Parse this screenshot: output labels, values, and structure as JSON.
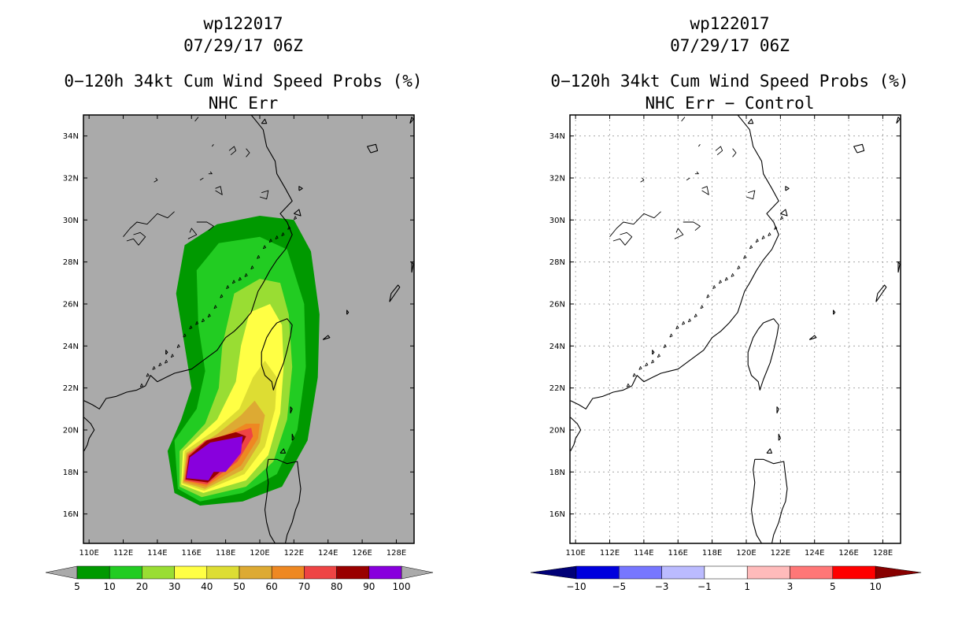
{
  "panels": [
    {
      "storm_id": "wp122017",
      "datetime": "07/29/17 06Z",
      "product": "0−120h 34kt Cum Wind Speed Probs (%)",
      "subtitle": "NHC Err",
      "lat_labels": [
        "34N",
        "32N",
        "30N",
        "28N",
        "26N",
        "24N",
        "22N",
        "20N",
        "18N",
        "16N"
      ],
      "lon_labels": [
        "110E",
        "112E",
        "114E",
        "116E",
        "118E",
        "120E",
        "122E",
        "124E",
        "126E",
        "128E"
      ],
      "colorbar": {
        "labels": [
          "5",
          "10",
          "20",
          "30",
          "40",
          "50",
          "60",
          "70",
          "80",
          "90",
          "100"
        ],
        "colors": [
          "#009900",
          "#22cc22",
          "#99dd33",
          "#ffff44",
          "#dddd33",
          "#ddaa33",
          "#ee8822",
          "#ee4444",
          "#990000",
          "#8800dd"
        ],
        "end_color": "#aaaaaa"
      }
    },
    {
      "storm_id": "wp122017",
      "datetime": "07/29/17 06Z",
      "product": "0−120h 34kt Cum Wind Speed Probs (%)",
      "subtitle": "NHC Err − Control",
      "lat_labels": [
        "34N",
        "32N",
        "30N",
        "28N",
        "26N",
        "24N",
        "22N",
        "20N",
        "18N",
        "16N"
      ],
      "lon_labels": [
        "110E",
        "112E",
        "114E",
        "116E",
        "118E",
        "120E",
        "122E",
        "124E",
        "126E",
        "128E"
      ],
      "colorbar": {
        "labels": [
          "−10",
          "−5",
          "−3",
          "−1",
          "1",
          "3",
          "5",
          "10"
        ],
        "colors": [
          "#0000dd",
          "#7777ff",
          "#bbbbff",
          "#ffffff",
          "#ffbbbb",
          "#ff7777",
          "#ff0000"
        ],
        "left_end_color": "#000077",
        "right_end_color": "#880000"
      }
    }
  ],
  "probability_field": {
    "description_levels": [
      5,
      10,
      20,
      30,
      40,
      50,
      60,
      70,
      80,
      90,
      100
    ],
    "contours": [
      {
        "level": 5,
        "lonlat": [
          [
            115.0,
            17.0
          ],
          [
            116.5,
            16.4
          ],
          [
            119.0,
            16.6
          ],
          [
            121.3,
            17.3
          ],
          [
            122.8,
            19.5
          ],
          [
            123.4,
            22.5
          ],
          [
            123.5,
            25.5
          ],
          [
            123.0,
            28.5
          ],
          [
            122.0,
            30.0
          ],
          [
            120.0,
            30.2
          ],
          [
            117.5,
            29.8
          ],
          [
            115.6,
            28.8
          ],
          [
            115.1,
            26.5
          ],
          [
            115.6,
            24.0
          ],
          [
            116.0,
            22.0
          ],
          [
            115.4,
            20.5
          ],
          [
            114.6,
            19.0
          ]
        ]
      },
      {
        "level": 10,
        "lonlat": [
          [
            115.2,
            17.2
          ],
          [
            116.5,
            16.6
          ],
          [
            119.0,
            17.0
          ],
          [
            121.0,
            17.9
          ],
          [
            122.2,
            20.0
          ],
          [
            122.7,
            23.0
          ],
          [
            122.6,
            26.0
          ],
          [
            121.6,
            28.6
          ],
          [
            120.0,
            29.2
          ],
          [
            117.6,
            28.9
          ],
          [
            116.3,
            27.6
          ],
          [
            116.4,
            25.0
          ],
          [
            116.8,
            22.8
          ],
          [
            116.3,
            21.0
          ],
          [
            115.0,
            19.5
          ]
        ]
      },
      {
        "level": 20,
        "lonlat": [
          [
            115.3,
            17.3
          ],
          [
            116.6,
            16.8
          ],
          [
            119.2,
            17.3
          ],
          [
            120.8,
            18.5
          ],
          [
            121.6,
            20.5
          ],
          [
            121.9,
            23.0
          ],
          [
            121.7,
            25.5
          ],
          [
            121.2,
            27.0
          ],
          [
            120.0,
            27.2
          ],
          [
            118.5,
            26.5
          ],
          [
            117.8,
            24.0
          ],
          [
            117.6,
            22.0
          ],
          [
            116.8,
            20.3
          ],
          [
            115.3,
            19.0
          ]
        ]
      },
      {
        "level": 30,
        "lonlat": [
          [
            115.4,
            17.4
          ],
          [
            116.7,
            17.0
          ],
          [
            119.2,
            17.6
          ],
          [
            120.5,
            18.8
          ],
          [
            121.2,
            20.8
          ],
          [
            121.4,
            23.0
          ],
          [
            121.3,
            25.0
          ],
          [
            120.6,
            26.0
          ],
          [
            119.4,
            25.6
          ],
          [
            118.9,
            24.0
          ],
          [
            118.6,
            22.3
          ],
          [
            117.5,
            20.5
          ],
          [
            115.5,
            19.0
          ]
        ]
      },
      {
        "level": 40,
        "lonlat": [
          [
            115.45,
            17.45
          ],
          [
            116.75,
            17.1
          ],
          [
            119.1,
            17.9
          ],
          [
            120.3,
            19.2
          ],
          [
            120.9,
            21.0
          ],
          [
            121.0,
            22.5
          ],
          [
            120.3,
            23.3
          ],
          [
            119.6,
            22.5
          ],
          [
            118.8,
            21.0
          ],
          [
            117.4,
            20.0
          ],
          [
            115.6,
            19.0
          ]
        ]
      },
      {
        "level": 50,
        "lonlat": [
          [
            115.5,
            17.5
          ],
          [
            116.8,
            17.2
          ],
          [
            119.0,
            18.1
          ],
          [
            120.0,
            19.4
          ],
          [
            120.3,
            20.7
          ],
          [
            119.7,
            21.4
          ],
          [
            118.9,
            20.7
          ],
          [
            117.5,
            19.8
          ],
          [
            115.7,
            18.9
          ]
        ]
      },
      {
        "level": 60,
        "lonlat": [
          [
            115.55,
            17.55
          ],
          [
            116.85,
            17.3
          ],
          [
            118.9,
            18.3
          ],
          [
            119.9,
            19.6
          ],
          [
            120.0,
            20.3
          ],
          [
            119.2,
            20.3
          ],
          [
            117.6,
            19.6
          ],
          [
            115.75,
            18.85
          ]
        ]
      },
      {
        "level": 70,
        "lonlat": [
          [
            115.6,
            17.6
          ],
          [
            116.9,
            17.4
          ],
          [
            118.7,
            18.5
          ],
          [
            119.6,
            19.7
          ],
          [
            119.5,
            20.1
          ],
          [
            118.2,
            19.8
          ],
          [
            116.8,
            19.5
          ],
          [
            115.8,
            18.8
          ]
        ]
      },
      {
        "level": 80,
        "lonlat": [
          [
            115.65,
            17.65
          ],
          [
            116.95,
            17.5
          ],
          [
            118.5,
            18.6
          ],
          [
            119.2,
            19.7
          ],
          [
            118.6,
            19.9
          ],
          [
            116.9,
            19.5
          ],
          [
            115.85,
            18.75
          ]
        ]
      },
      {
        "level": 90,
        "lonlat": [
          [
            115.7,
            17.7
          ],
          [
            117.0,
            17.6
          ],
          [
            117.3,
            18.0
          ],
          [
            118.0,
            18.0
          ],
          [
            118.9,
            18.9
          ],
          [
            119.0,
            19.7
          ],
          [
            117.1,
            19.4
          ],
          [
            115.9,
            18.7
          ]
        ]
      }
    ]
  }
}
